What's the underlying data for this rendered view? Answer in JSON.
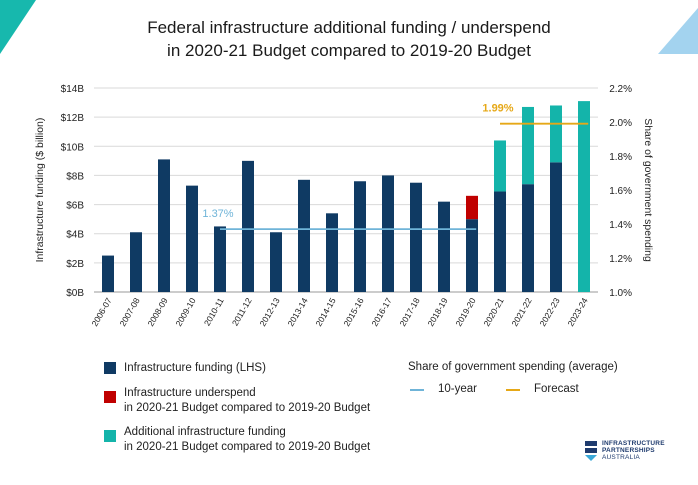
{
  "title_line1": "Federal infrastructure additional funding / underspend",
  "title_line2": "in 2020-21 Budget compared to 2019-20 Budget",
  "colors": {
    "navy": "#0f3a63",
    "red": "#c00000",
    "teal": "#14b4aa",
    "ten_year_line": "#6fb4d8",
    "forecast_line": "#e6a817",
    "corner_left": "#17b8ad",
    "corner_right": "#a3d3ef"
  },
  "chart_data": {
    "type": "bar",
    "stacked": true,
    "categories": [
      "2006-07",
      "2007-08",
      "2008-09",
      "2009-10",
      "2010-11",
      "2011-12",
      "2012-13",
      "2013-14",
      "2014-15",
      "2015-16",
      "2016-17",
      "2017-18",
      "2018-19",
      "2019-20",
      "2020-21",
      "2021-22",
      "2022-23",
      "2023-24"
    ],
    "series": [
      {
        "name": "Infrastructure funding (LHS)",
        "values": [
          2.5,
          4.1,
          9.1,
          7.3,
          4.5,
          9.0,
          4.1,
          7.7,
          5.4,
          7.6,
          8.0,
          7.5,
          6.2,
          5.0,
          6.9,
          7.4,
          8.9,
          0
        ]
      },
      {
        "name": "Infrastructure underspend in 2020-21 Budget compared to 2019-20 Budget",
        "values": [
          0,
          0,
          0,
          0,
          0,
          0,
          0,
          0,
          0,
          0,
          0,
          0,
          0,
          1.6,
          0,
          0,
          0,
          0
        ]
      },
      {
        "name": "Additional infrastructure funding in 2020-21 Budget compared to 2019-20 Budget",
        "values": [
          0,
          0,
          0,
          0,
          0,
          0,
          0,
          0,
          0,
          0,
          0,
          0,
          0,
          0,
          3.5,
          5.3,
          3.9,
          13.1
        ]
      }
    ],
    "ylabel": "Infrastructure funding ($ billion)",
    "ylim": [
      0,
      14
    ],
    "yticks": [
      "$0B",
      "$2B",
      "$4B",
      "$6B",
      "$8B",
      "$10B",
      "$12B",
      "$14B"
    ],
    "y2label": "Share of government spending",
    "y2lim": [
      1.0,
      2.2
    ],
    "y2ticks": [
      "1.0%",
      "1.2%",
      "1.4%",
      "1.6%",
      "1.8%",
      "2.0%",
      "2.2%"
    ],
    "reference_lines": [
      {
        "name": "10-year",
        "label": "1.37%",
        "value": 1.37,
        "from": "2010-11",
        "to": "2019-20"
      },
      {
        "name": "Forecast",
        "label": "1.99%",
        "value": 1.99,
        "from": "2020-21",
        "to": "2023-24"
      }
    ]
  },
  "legend": {
    "funding": "Infrastructure funding (LHS)",
    "underspend_1": "Infrastructure underspend",
    "underspend_2": "in 2020-21 Budget compared to 2019-20 Budget",
    "additional_1": "Additional infrastructure funding",
    "additional_2": "in 2020-21 Budget compared to 2019-20 Budget",
    "share_title": "Share of government spending (average)",
    "ten_year": "10-year",
    "forecast": "Forecast"
  },
  "logo": {
    "line1": "INFRASTRUCTURE",
    "line2": "PARTNERSHIPS",
    "line3": "AUSTRALIA"
  }
}
